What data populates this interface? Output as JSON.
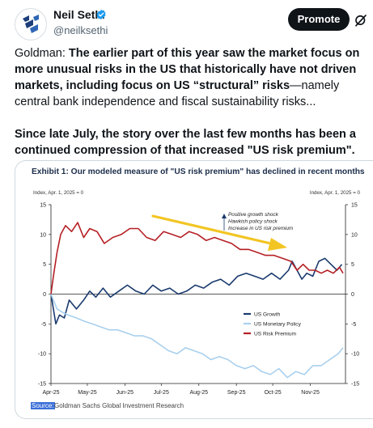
{
  "author": {
    "name": "Neil Sethi",
    "handle": "@neilksethi",
    "avatar_icon": "sethi-logo-icon",
    "verified_icon": "verified-badge-icon"
  },
  "actions": {
    "promote_label": "Promote",
    "grok_icon": "grok-icon"
  },
  "tweet": {
    "para1_lead": "Goldman: ",
    "para1_bold": "The earlier part of this year saw the market focus on more unusual risks in the US that historically have not driven markets, including focus on US “structural” risks",
    "para1_rest": "—namely central bank independence and fiscal sustainability risks...",
    "para2": "Since late July, the story over the last few months has been a continued compression of that increased \"US risk premium\"."
  },
  "chart": {
    "title": "Exhibit 1: Our modeled measure of \"US risk premium\" has declined in recent months",
    "left_axis_label": "Index, Apr. 1, 2025 = 0",
    "right_axis_label": "Index, Apr. 1, 2025 = 0",
    "annotation": [
      "Positive growth shock",
      "Hawkish policy shock",
      "Increase in US risk premium"
    ],
    "source_word": "Source:",
    "source_text": "Goldman Sachs Global Investment Research"
  },
  "chart_data": {
    "type": "line",
    "title": "Exhibit 1: Our modeled measure of \"US risk premium\" has declined in recent months",
    "ylabel": "Index, Apr. 1, 2025 = 0",
    "y2label": "Index, Apr. 1, 2025 = 0",
    "ylim": [
      -15,
      15
    ],
    "yticks": [
      -15,
      -10,
      -5,
      0,
      5,
      10,
      15
    ],
    "xlim": [
      "2025-04-01",
      "2025-11-30"
    ],
    "xticks": [
      "Apr-25",
      "May-25",
      "Jun-25",
      "Jul-25",
      "Aug-25",
      "Sep-25",
      "Oct-25",
      "Nov-25"
    ],
    "grid": false,
    "legend_position": "center-right",
    "colors": {
      "US Growth": "#1a3a6e",
      "US Monetary Policy": "#a8d0ee",
      "US Risk Premium": "#b52025",
      "arrow": "#f2c522"
    },
    "series": [
      {
        "name": "US Growth",
        "x": [
          "2025-04-01",
          "2025-04-03",
          "2025-04-05",
          "2025-04-08",
          "2025-04-12",
          "2025-04-16",
          "2025-04-22",
          "2025-04-28",
          "2025-05-03",
          "2025-05-08",
          "2025-05-14",
          "2025-05-20",
          "2025-05-27",
          "2025-06-03",
          "2025-06-10",
          "2025-06-17",
          "2025-06-24",
          "2025-07-01",
          "2025-07-08",
          "2025-07-15",
          "2025-07-22",
          "2025-07-29",
          "2025-08-05",
          "2025-08-12",
          "2025-08-19",
          "2025-08-26",
          "2025-09-02",
          "2025-09-09",
          "2025-09-16",
          "2025-09-23",
          "2025-09-30",
          "2025-10-07",
          "2025-10-14",
          "2025-10-17",
          "2025-10-21",
          "2025-10-25",
          "2025-10-29",
          "2025-11-03",
          "2025-11-08",
          "2025-11-13",
          "2025-11-18",
          "2025-11-23",
          "2025-11-27"
        ],
        "values": [
          0,
          -2.5,
          -5,
          -3.5,
          -4,
          -1,
          -2.5,
          -1,
          0.5,
          -0.5,
          1,
          -0.5,
          0.5,
          1.5,
          0.5,
          0,
          1.5,
          0.5,
          1,
          0,
          0.5,
          1.5,
          1,
          2,
          2.5,
          1.5,
          3,
          3.5,
          3,
          2.5,
          3.5,
          2.5,
          4,
          5.5,
          4,
          2.5,
          3.5,
          3,
          5.5,
          6,
          5,
          4,
          5
        ]
      },
      {
        "name": "US Monetary Policy",
        "x": [
          "2025-04-01",
          "2025-04-03",
          "2025-04-06",
          "2025-04-10",
          "2025-04-15",
          "2025-04-22",
          "2025-04-28",
          "2025-05-05",
          "2025-05-12",
          "2025-05-19",
          "2025-05-26",
          "2025-06-02",
          "2025-06-09",
          "2025-06-16",
          "2025-06-23",
          "2025-06-30",
          "2025-07-07",
          "2025-07-14",
          "2025-07-21",
          "2025-07-28",
          "2025-08-04",
          "2025-08-11",
          "2025-08-18",
          "2025-08-25",
          "2025-09-01",
          "2025-09-08",
          "2025-09-15",
          "2025-09-22",
          "2025-09-29",
          "2025-10-06",
          "2025-10-13",
          "2025-10-20",
          "2025-10-27",
          "2025-11-03",
          "2025-11-10",
          "2025-11-17",
          "2025-11-24",
          "2025-11-28"
        ],
        "values": [
          0,
          -1,
          -2.5,
          -3,
          -3.5,
          -4,
          -4.5,
          -5,
          -5.5,
          -6,
          -6,
          -6.5,
          -7,
          -7,
          -7.5,
          -8.5,
          -9.5,
          -10,
          -9,
          -9.5,
          -10,
          -11,
          -10.5,
          -11,
          -12,
          -12.5,
          -12,
          -13,
          -13.5,
          -12.5,
          -14,
          -13,
          -13.5,
          -12,
          -12,
          -11,
          -10,
          -9
        ]
      },
      {
        "name": "US Risk Premium",
        "x": [
          "2025-04-01",
          "2025-04-03",
          "2025-04-06",
          "2025-04-09",
          "2025-04-13",
          "2025-04-18",
          "2025-04-23",
          "2025-04-28",
          "2025-05-03",
          "2025-05-09",
          "2025-05-15",
          "2025-05-22",
          "2025-05-29",
          "2025-06-05",
          "2025-06-12",
          "2025-06-19",
          "2025-06-26",
          "2025-07-03",
          "2025-07-10",
          "2025-07-17",
          "2025-07-24",
          "2025-07-31",
          "2025-08-07",
          "2025-08-14",
          "2025-08-21",
          "2025-08-28",
          "2025-09-04",
          "2025-09-11",
          "2025-09-18",
          "2025-09-25",
          "2025-10-02",
          "2025-10-09",
          "2025-10-16",
          "2025-10-21",
          "2025-10-26",
          "2025-10-31",
          "2025-11-05",
          "2025-11-10",
          "2025-11-15",
          "2025-11-20",
          "2025-11-25",
          "2025-11-28"
        ],
        "values": [
          0,
          3,
          7,
          10,
          11.5,
          10.5,
          12,
          9.5,
          11,
          10.5,
          8.5,
          9.5,
          10,
          11,
          11,
          9.5,
          9,
          10.5,
          10,
          9.5,
          10.5,
          10,
          9,
          9.5,
          9,
          8.5,
          7.5,
          7.5,
          7,
          6.5,
          6.5,
          6,
          5.5,
          4,
          5,
          4,
          4,
          3.5,
          4,
          3.5,
          4.5,
          3.5
        ]
      }
    ]
  }
}
